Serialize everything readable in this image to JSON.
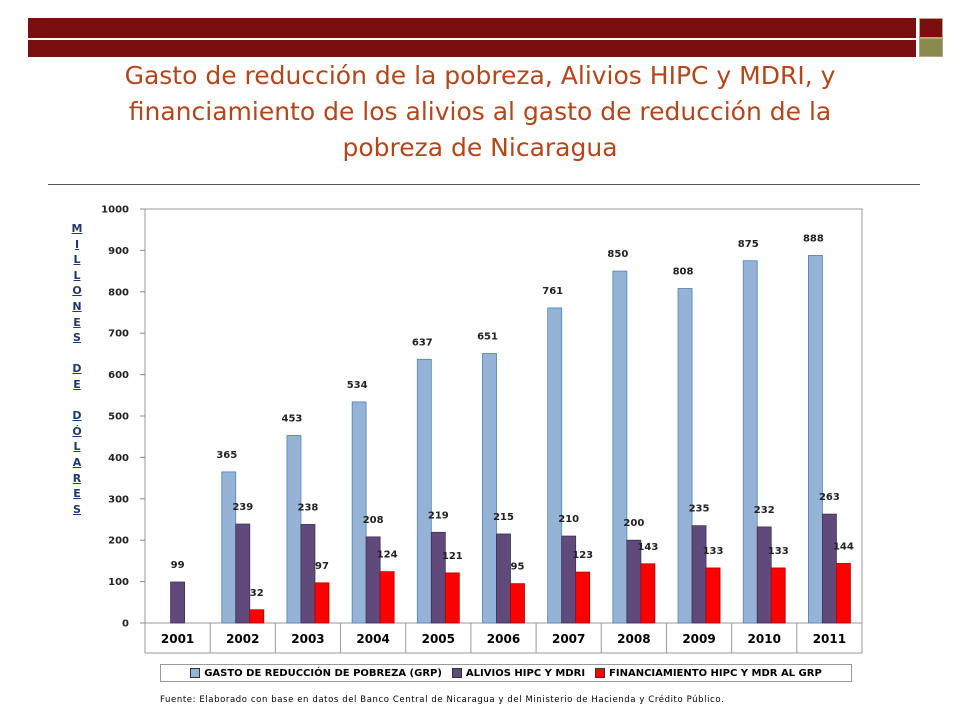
{
  "title": "Gasto de reducción de la pobreza, Alivios HIPC y MDRI, y\nfinanciamiento de los alivios al gasto de reducción de la\npobreza de Nicaragua",
  "ylabel_letters": [
    "M",
    "I",
    "L",
    "L",
    "O",
    "N",
    "E",
    "S",
    " ",
    "D",
    "E",
    " ",
    "D",
    "Ó",
    "L",
    "A",
    "R",
    "E",
    "S"
  ],
  "footer": "Fuente: Elaborado con base en datos del Banco Central de Nicaragua y del Ministerio de Hacienda y Crédito Público.",
  "colors": {
    "band": "#7a0f0f",
    "title": "#b3461b",
    "series": [
      "#95b3d7",
      "#604a7b",
      "#ff0000"
    ]
  },
  "chart_data": {
    "type": "bar",
    "categories": [
      "2001",
      "2002",
      "2003",
      "2004",
      "2005",
      "2006",
      "2007",
      "2008",
      "2009",
      "2010",
      "2011"
    ],
    "series": [
      {
        "name": "GASTO DE REDUCCIÓN DE POBREZA (GRP)",
        "values": [
          null,
          365,
          453,
          534,
          637,
          651,
          761,
          850,
          808,
          875,
          888
        ]
      },
      {
        "name": "ALIVIOS HIPC Y MDRI",
        "values": [
          99,
          239,
          238,
          208,
          219,
          215,
          210,
          200,
          235,
          232,
          263
        ]
      },
      {
        "name": "FINANCIAMIENTO HIPC Y MDR AL GRP",
        "values": [
          null,
          32,
          97,
          124,
          121,
          95,
          123,
          143,
          133,
          133,
          144
        ]
      }
    ],
    "ylim": [
      0,
      1000
    ],
    "yticks": [
      0,
      100,
      200,
      300,
      400,
      500,
      600,
      700,
      800,
      900,
      1000
    ],
    "legend": "bottom"
  }
}
